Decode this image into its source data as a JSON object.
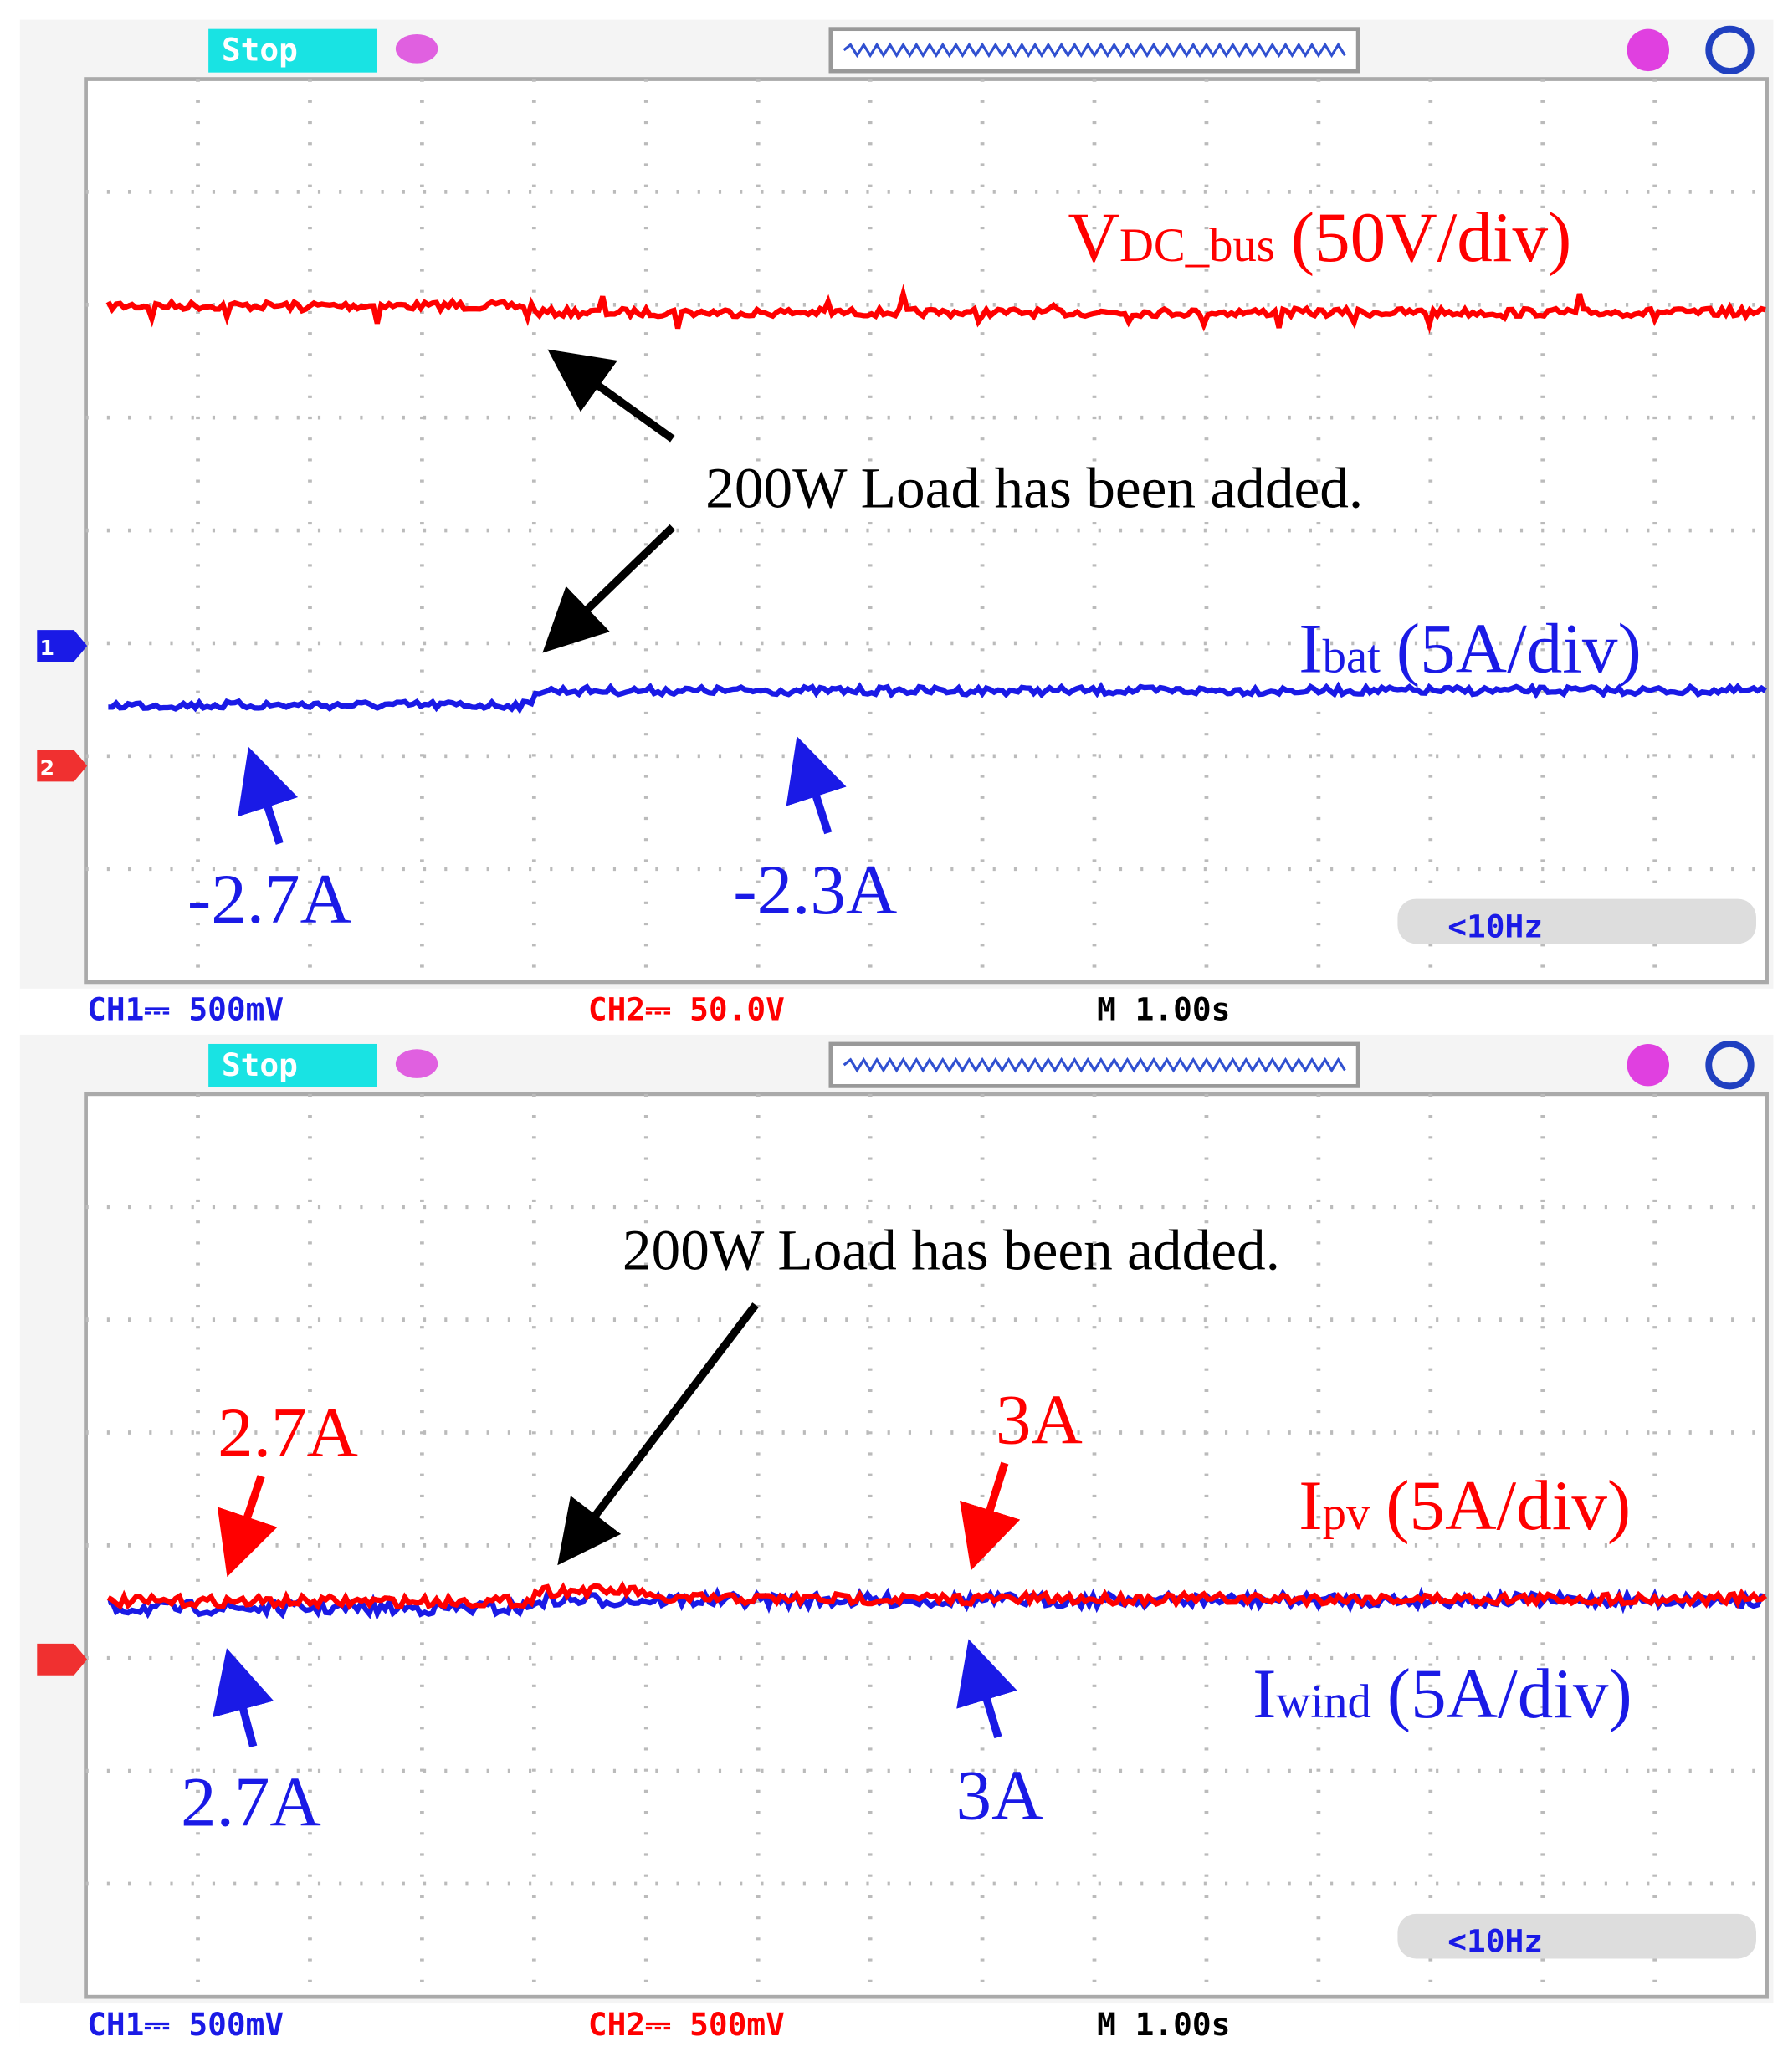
{
  "panels": [
    {
      "status": "Stop",
      "markers": [
        "1",
        "2"
      ],
      "traces": [
        {
          "symbol": "V",
          "subscript": "DC_bus",
          "scale": "(50V/div)"
        },
        {
          "symbol": "I",
          "subscript": "bat",
          "scale": "(5A/div)"
        }
      ],
      "annotations": [
        "200W Load has been added.",
        "-2.7A",
        "-2.3A"
      ],
      "filter": "<10Hz",
      "footer": {
        "ch1": "CH1⎓ 500mV",
        "ch2": "CH2⎓ 50.0V",
        "timebase": "M 1.00s"
      }
    },
    {
      "status": "Stop",
      "traces": [
        {
          "symbol": "I",
          "subscript": "pv",
          "scale": "(5A/div)"
        },
        {
          "symbol": "I",
          "subscript": "wind",
          "scale": "(5A/div)"
        }
      ],
      "annotations": [
        "200W Load has been added.",
        "2.7A",
        "3A",
        "2.7A",
        "3A"
      ],
      "filter": "<10Hz",
      "footer": {
        "ch1": "CH1⎓ 500mV",
        "ch2": "CH2⎓ 500mV",
        "timebase": "M 1.00s"
      }
    }
  ]
}
